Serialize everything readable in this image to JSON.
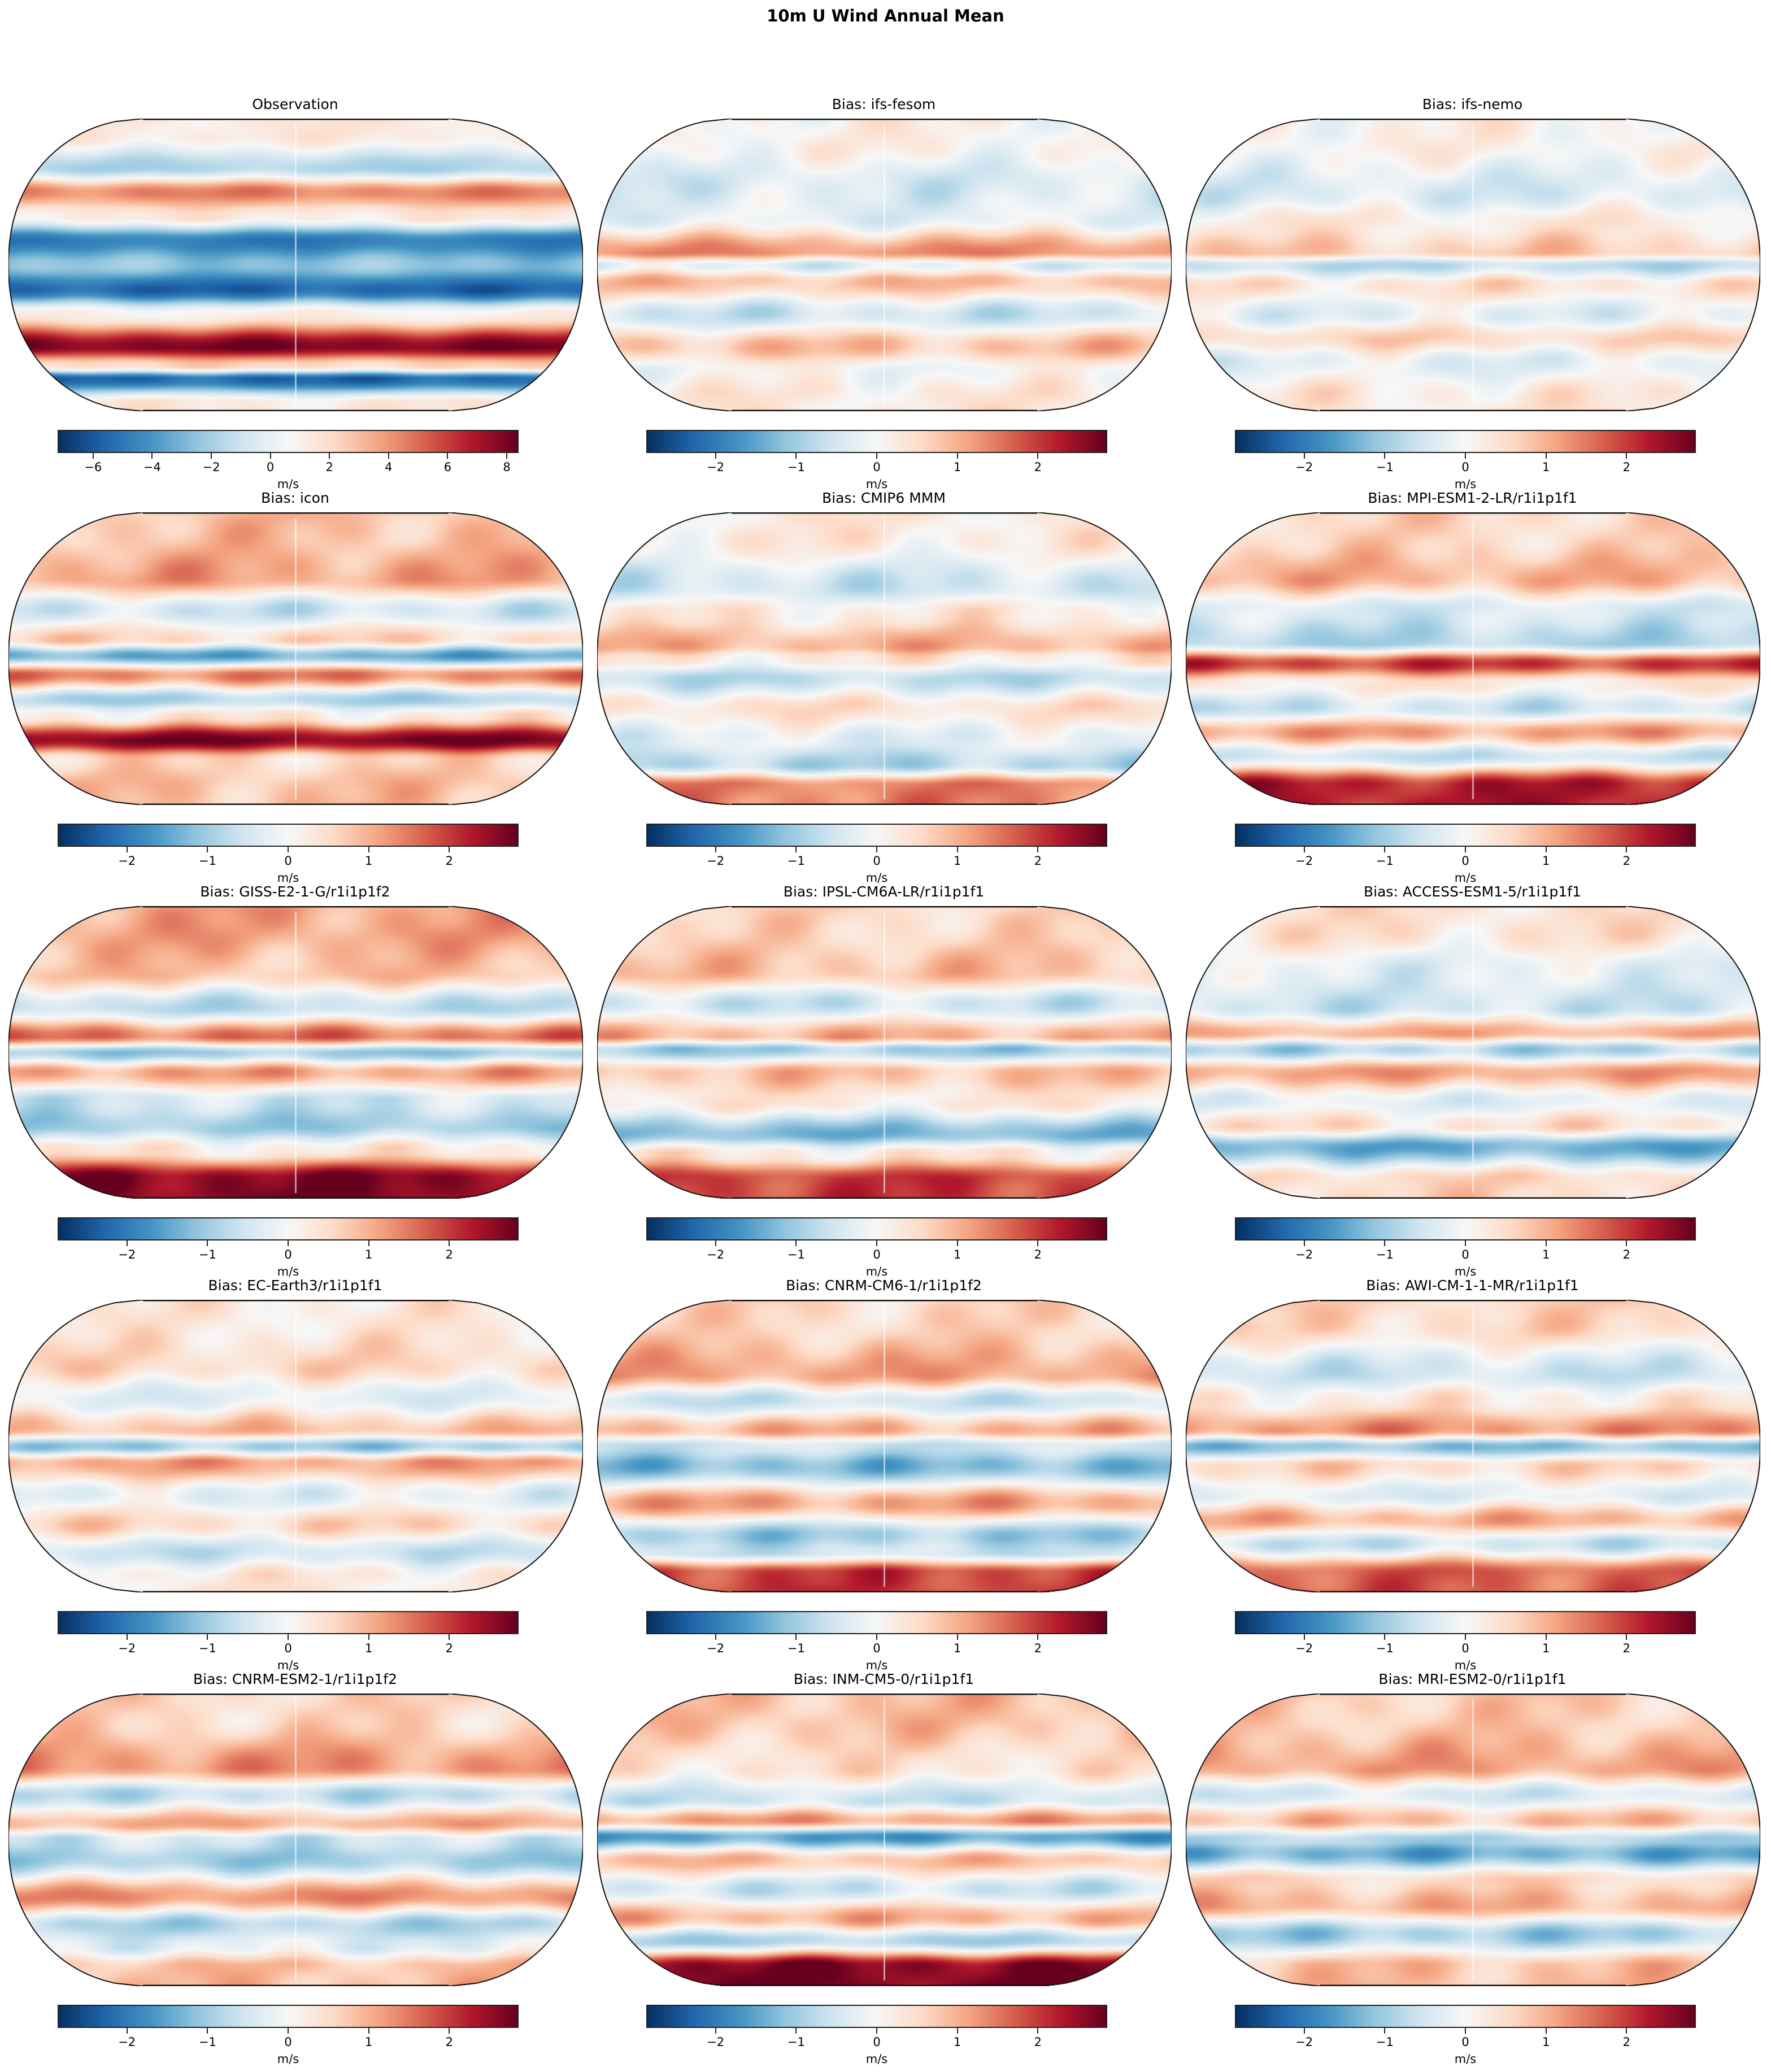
{
  "figure": {
    "suptitle": "10m U Wind Annual Mean",
    "layout": {
      "rows": 5,
      "cols": 3
    },
    "projection": "Robinson",
    "colormap": "RdBu_r"
  },
  "chart_data": [
    {
      "type": "heatmap",
      "title": "Observation",
      "projection": "Robinson",
      "colorbar": {
        "label": "m/s",
        "vmin": -7.2,
        "vmax": 8.4,
        "ticks": [
          -6,
          -4,
          -2,
          0,
          2,
          4,
          6,
          8
        ],
        "tick_labels": [
          "−6",
          "−4",
          "−2",
          "0",
          "2",
          "4",
          "6",
          "8"
        ]
      },
      "pattern": {
        "description": "Strong easterlies (negative) in tropics, strong westerlies (positive) in Southern Ocean ~50S and moderate positive in NH midlatitudes; Antarctic coastal easterlies",
        "bands": [
          [
            80,
            0.1
          ],
          [
            60,
            -0.3
          ],
          [
            45,
            0.5
          ],
          [
            30,
            0.1
          ],
          [
            15,
            -0.7
          ],
          [
            0,
            -0.4
          ],
          [
            -15,
            -0.8
          ],
          [
            -30,
            0.05
          ],
          [
            -50,
            0.95
          ],
          [
            -62,
            0.2
          ],
          [
            -70,
            -0.8
          ],
          [
            -85,
            0.1
          ]
        ]
      }
    },
    {
      "type": "heatmap",
      "title": "Bias: ifs-fesom",
      "projection": "Robinson",
      "colorbar": {
        "label": "m/s",
        "vmin": -2.86,
        "vmax": 2.86,
        "ticks": [
          -2,
          -1,
          0,
          1,
          2
        ],
        "tick_labels": [
          "−2",
          "−1",
          "0",
          "1",
          "2"
        ]
      },
      "pattern": {
        "description": "Weak bias mostly; positive equatorial Pacific band ~5N and Indian Ocean; positive Southern Ocean band; negative ~35S",
        "bands": [
          [
            75,
            0.05
          ],
          [
            50,
            -0.15
          ],
          [
            30,
            -0.1
          ],
          [
            8,
            0.45
          ],
          [
            0,
            -0.1
          ],
          [
            -10,
            0.3
          ],
          [
            -30,
            -0.2
          ],
          [
            -50,
            0.3
          ],
          [
            -65,
            0.0
          ],
          [
            -80,
            0.1
          ]
        ]
      }
    },
    {
      "type": "heatmap",
      "title": "Bias: ifs-nemo",
      "projection": "Robinson",
      "colorbar": {
        "label": "m/s",
        "vmin": -2.86,
        "vmax": 2.86,
        "ticks": [
          -2,
          -1,
          0,
          1,
          2
        ],
        "tick_labels": [
          "−2",
          "−1",
          "0",
          "1",
          "2"
        ]
      },
      "pattern": {
        "description": "Weak bias; slight positive ~5N Pacific, negative ~5S equatorial; positive Southern Ocean",
        "bands": [
          [
            75,
            0.05
          ],
          [
            45,
            -0.15
          ],
          [
            25,
            0.1
          ],
          [
            8,
            0.25
          ],
          [
            0,
            -0.25
          ],
          [
            -12,
            0.15
          ],
          [
            -30,
            -0.1
          ],
          [
            -45,
            0.2
          ],
          [
            -60,
            -0.1
          ],
          [
            -80,
            0.1
          ]
        ]
      }
    },
    {
      "type": "heatmap",
      "title": "Bias: icon",
      "projection": "Robinson",
      "colorbar": {
        "label": "m/s",
        "vmin": -2.86,
        "vmax": 2.86,
        "ticks": [
          -2,
          -1,
          0,
          1,
          2
        ],
        "tick_labels": [
          "−2",
          "−1",
          "0",
          "1",
          "2"
        ]
      },
      "pattern": {
        "description": "Strong positive Southern Ocean band ~50S; alternating tropical bands with strong negative west Pacific equator and positive Indian Ocean",
        "bands": [
          [
            75,
            0.3
          ],
          [
            50,
            0.4
          ],
          [
            30,
            -0.2
          ],
          [
            12,
            0.2
          ],
          [
            2,
            -0.5
          ],
          [
            -10,
            0.5
          ],
          [
            -25,
            -0.3
          ],
          [
            -35,
            0.1
          ],
          [
            -50,
            0.95
          ],
          [
            -62,
            0.2
          ],
          [
            -78,
            0.3
          ]
        ]
      }
    },
    {
      "type": "heatmap",
      "title": "Bias: CMIP6 MMM",
      "projection": "Robinson",
      "colorbar": {
        "label": "m/s",
        "vmin": -2.86,
        "vmax": 2.86,
        "ticks": [
          -2,
          -1,
          0,
          1,
          2
        ],
        "tick_labels": [
          "−2",
          "−1",
          "0",
          "1",
          "2"
        ]
      },
      "pattern": {
        "description": "Moderate positive tropical Atlantic/Pacific ~5N; negative Indian Ocean; weak elsewhere; positive Antarctic coast",
        "bands": [
          [
            75,
            0.1
          ],
          [
            45,
            -0.2
          ],
          [
            28,
            0.1
          ],
          [
            8,
            0.35
          ],
          [
            0,
            0.1
          ],
          [
            -12,
            -0.25
          ],
          [
            -30,
            0.15
          ],
          [
            -50,
            -0.1
          ],
          [
            -65,
            -0.3
          ],
          [
            -78,
            0.5
          ]
        ]
      }
    },
    {
      "type": "heatmap",
      "title": "Bias: MPI-ESM1-2-LR/r1i1p1f1",
      "projection": "Robinson",
      "colorbar": {
        "label": "m/s",
        "vmin": -2.86,
        "vmax": 2.86,
        "ticks": [
          -2,
          -1,
          0,
          1,
          2
        ],
        "tick_labels": [
          "−2",
          "−1",
          "0",
          "1",
          "2"
        ]
      },
      "pattern": {
        "description": "Strong positive tropical Atlantic ~5S; negative near Caribbean; positive Southern Ocean; strong Antarctic coast positive",
        "bands": [
          [
            75,
            0.2
          ],
          [
            50,
            0.35
          ],
          [
            30,
            -0.15
          ],
          [
            10,
            -0.3
          ],
          [
            -3,
            0.7
          ],
          [
            -15,
            0.1
          ],
          [
            -30,
            -0.2
          ],
          [
            -45,
            0.4
          ],
          [
            -60,
            -0.2
          ],
          [
            -78,
            0.8
          ]
        ]
      }
    },
    {
      "type": "heatmap",
      "title": "Bias: GISS-E2-1-G/r1i1p1f2",
      "projection": "Robinson",
      "colorbar": {
        "label": "m/s",
        "vmin": -2.86,
        "vmax": 2.86,
        "ticks": [
          -2,
          -1,
          0,
          1,
          2
        ],
        "tick_labels": [
          "−2",
          "−1",
          "0",
          "1",
          "2"
        ]
      },
      "pattern": {
        "description": "Strong positive east Pacific equator and Chile coast; negative central Atlantic; strong positive Antarctic coast",
        "bands": [
          [
            75,
            0.4
          ],
          [
            50,
            0.3
          ],
          [
            28,
            -0.25
          ],
          [
            10,
            0.55
          ],
          [
            0,
            -0.35
          ],
          [
            -12,
            0.4
          ],
          [
            -30,
            -0.2
          ],
          [
            -45,
            -0.35
          ],
          [
            -60,
            0.1
          ],
          [
            -78,
            0.95
          ]
        ]
      }
    },
    {
      "type": "heatmap",
      "title": "Bias: IPSL-CM6A-LR/r1i1p1f1",
      "projection": "Robinson",
      "colorbar": {
        "label": "m/s",
        "vmin": -2.86,
        "vmax": 2.86,
        "ticks": [
          -2,
          -1,
          0,
          1,
          2
        ],
        "tick_labels": [
          "−2",
          "−1",
          "0",
          "1",
          "2"
        ]
      },
      "pattern": {
        "description": "Positive tropical bands, negative west Pacific ~5N; negative Southern Ocean ~50S; positive Antarctic coast",
        "bands": [
          [
            75,
            0.2
          ],
          [
            50,
            0.3
          ],
          [
            30,
            -0.2
          ],
          [
            10,
            0.35
          ],
          [
            2,
            -0.35
          ],
          [
            -12,
            0.3
          ],
          [
            -30,
            0.1
          ],
          [
            -50,
            -0.45
          ],
          [
            -62,
            0.1
          ],
          [
            -78,
            0.7
          ]
        ]
      }
    },
    {
      "type": "heatmap",
      "title": "Bias: ACCESS-ESM1-5/r1i1p1f1",
      "projection": "Robinson",
      "colorbar": {
        "label": "m/s",
        "vmin": -2.86,
        "vmax": 2.86,
        "ticks": [
          -2,
          -1,
          0,
          1,
          2
        ],
        "tick_labels": [
          "−2",
          "−1",
          "0",
          "1",
          "2"
        ]
      },
      "pattern": {
        "description": "Positive ~10N; negative equatorial Atlantic/Africa; positive Pacific south of equator; negative Southern Ocean ~55S",
        "bands": [
          [
            75,
            0.15
          ],
          [
            50,
            -0.1
          ],
          [
            28,
            -0.2
          ],
          [
            12,
            0.35
          ],
          [
            2,
            -0.3
          ],
          [
            -12,
            0.4
          ],
          [
            -30,
            -0.1
          ],
          [
            -45,
            0.15
          ],
          [
            -58,
            -0.5
          ],
          [
            -78,
            0.2
          ]
        ]
      }
    },
    {
      "type": "heatmap",
      "title": "Bias: EC-Earth3/r1i1p1f1",
      "projection": "Robinson",
      "colorbar": {
        "label": "m/s",
        "vmin": -2.86,
        "vmax": 2.86,
        "ticks": [
          -2,
          -1,
          0,
          1,
          2
        ],
        "tick_labels": [
          "−2",
          "−1",
          "0",
          "1",
          "2"
        ]
      },
      "pattern": {
        "description": "Moderate positive ~5N bands, negative near equator; positive tropical Atlantic south; weak Southern Ocean positive",
        "bands": [
          [
            75,
            0.1
          ],
          [
            50,
            0.2
          ],
          [
            30,
            -0.1
          ],
          [
            10,
            0.3
          ],
          [
            0,
            -0.35
          ],
          [
            -10,
            0.4
          ],
          [
            -30,
            -0.1
          ],
          [
            -48,
            0.2
          ],
          [
            -65,
            -0.2
          ],
          [
            -80,
            0.1
          ]
        ]
      }
    },
    {
      "type": "heatmap",
      "title": "Bias: CNRM-CM6-1/r1i1p1f2",
      "projection": "Robinson",
      "colorbar": {
        "label": "m/s",
        "vmin": -2.86,
        "vmax": 2.86,
        "ticks": [
          -2,
          -1,
          0,
          1,
          2
        ],
        "tick_labels": [
          "−2",
          "−1",
          "0",
          "1",
          "2"
        ]
      },
      "pattern": {
        "description": "Positive NH midlatitudes; strong negative Indian Ocean ~10S; positive ~40S; negative Southern Ocean ~58S; positive Antarctic coast",
        "bands": [
          [
            75,
            0.2
          ],
          [
            45,
            0.4
          ],
          [
            28,
            -0.2
          ],
          [
            10,
            0.35
          ],
          [
            0,
            -0.2
          ],
          [
            -12,
            -0.45
          ],
          [
            -35,
            0.4
          ],
          [
            -55,
            -0.35
          ],
          [
            -65,
            -0.2
          ],
          [
            -78,
            0.7
          ]
        ]
      }
    },
    {
      "type": "heatmap",
      "title": "Bias: AWI-CM-1-1-MR/r1i1p1f1",
      "projection": "Robinson",
      "colorbar": {
        "label": "m/s",
        "vmin": -2.86,
        "vmax": 2.86,
        "ticks": [
          -2,
          -1,
          0,
          1,
          2
        ],
        "tick_labels": [
          "−2",
          "−1",
          "0",
          "1",
          "2"
        ]
      },
      "pattern": {
        "description": "Positive ~10N Pacific and Indian Ocean; negative equatorial west; positive Southern Ocean ~45S; positive Antarctic coast",
        "bands": [
          [
            75,
            0.2
          ],
          [
            45,
            -0.2
          ],
          [
            28,
            0.1
          ],
          [
            10,
            0.45
          ],
          [
            0,
            -0.4
          ],
          [
            -12,
            0.2
          ],
          [
            -30,
            -0.1
          ],
          [
            -45,
            0.35
          ],
          [
            -60,
            -0.2
          ],
          [
            -78,
            0.6
          ]
        ]
      }
    },
    {
      "type": "heatmap",
      "title": "Bias: CNRM-ESM2-1/r1i1p1f2",
      "projection": "Robinson",
      "colorbar": {
        "label": "m/s",
        "vmin": -2.86,
        "vmax": 2.86,
        "ticks": [
          -2,
          -1,
          0,
          1,
          2
        ],
        "tick_labels": [
          "−2",
          "−1",
          "0",
          "1",
          "2"
        ]
      },
      "pattern": {
        "description": "Positive NH midlatitudes; negative Indian Ocean ~10S; positive ~40S band; negative ~55S",
        "bands": [
          [
            75,
            0.2
          ],
          [
            45,
            0.45
          ],
          [
            28,
            -0.25
          ],
          [
            10,
            0.35
          ],
          [
            0,
            -0.2
          ],
          [
            -12,
            -0.35
          ],
          [
            -35,
            0.45
          ],
          [
            -52,
            -0.3
          ],
          [
            -65,
            -0.1
          ],
          [
            -78,
            0.3
          ]
        ]
      }
    },
    {
      "type": "heatmap",
      "title": "Bias: INM-CM5-0/r1i1p1f1",
      "projection": "Robinson",
      "colorbar": {
        "label": "m/s",
        "vmin": -2.86,
        "vmax": 2.86,
        "ticks": [
          -2,
          -1,
          0,
          1,
          2
        ],
        "tick_labels": [
          "−2",
          "−1",
          "0",
          "1",
          "2"
        ]
      },
      "pattern": {
        "description": "Positive Pacific ~15N; strong negative equatorial west Pacific and Atlantic; positive Southern Ocean; strong positive Antarctic",
        "bands": [
          [
            75,
            0.3
          ],
          [
            45,
            0.15
          ],
          [
            25,
            -0.2
          ],
          [
            12,
            0.4
          ],
          [
            2,
            -0.55
          ],
          [
            -12,
            0.3
          ],
          [
            -30,
            -0.2
          ],
          [
            -48,
            0.35
          ],
          [
            -62,
            -0.3
          ],
          [
            -78,
            0.95
          ]
        ]
      }
    },
    {
      "type": "heatmap",
      "title": "Bias: MRI-ESM2-0/r1i1p1f1",
      "projection": "Robinson",
      "colorbar": {
        "label": "m/s",
        "vmin": -2.86,
        "vmax": 2.86,
        "ticks": [
          -2,
          -1,
          0,
          1,
          2
        ],
        "tick_labels": [
          "−2",
          "−1",
          "0",
          "1",
          "2"
        ]
      },
      "pattern": {
        "description": "Positive NH midlatitudes; strong negative Indian Ocean ~5S; positive tropical Pacific; positive ~40S; negative ~58S",
        "bands": [
          [
            75,
            0.25
          ],
          [
            45,
            0.4
          ],
          [
            28,
            -0.15
          ],
          [
            12,
            0.3
          ],
          [
            0,
            -0.3
          ],
          [
            -8,
            -0.5
          ],
          [
            -25,
            0.2
          ],
          [
            -40,
            0.35
          ],
          [
            -58,
            -0.35
          ],
          [
            -78,
            0.3
          ]
        ]
      }
    }
  ]
}
